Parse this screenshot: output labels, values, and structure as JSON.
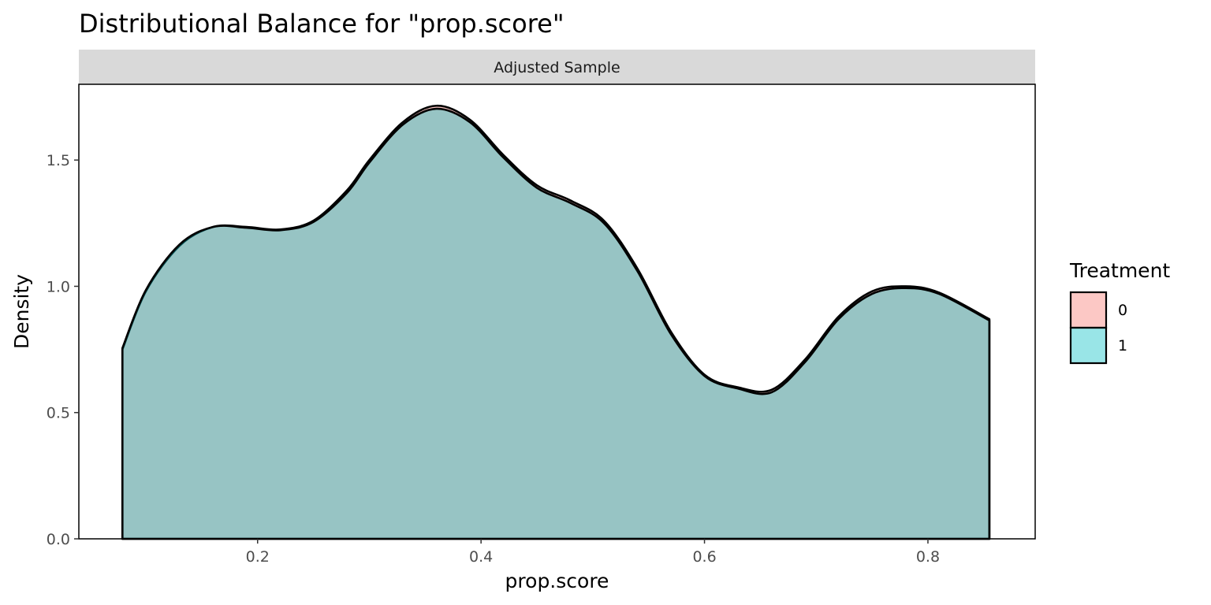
{
  "chart_data": {
    "type": "area",
    "title": "Distributional Balance for \"prop.score\"",
    "facet_label": "Adjusted Sample",
    "xlabel": "prop.score",
    "ylabel": "Density",
    "xlim": [
      0.04,
      0.896
    ],
    "ylim": [
      0,
      1.8
    ],
    "x_ticks": [
      0.2,
      0.4,
      0.6,
      0.8
    ],
    "x_tick_labels": [
      "0.2",
      "0.4",
      "0.6",
      "0.8"
    ],
    "y_ticks": [
      0.0,
      0.5,
      1.0,
      1.5
    ],
    "y_tick_labels": [
      "0.0",
      "0.5",
      "1.0",
      "1.5"
    ],
    "grid": false,
    "legend": {
      "title": "Treatment",
      "position": "right"
    },
    "series": [
      {
        "name": "0",
        "color": "#F8766D",
        "fill_opacity": 0.4,
        "x": [
          0.079,
          0.1,
          0.13,
          0.16,
          0.19,
          0.22,
          0.25,
          0.28,
          0.3,
          0.33,
          0.36,
          0.39,
          0.42,
          0.45,
          0.48,
          0.51,
          0.54,
          0.57,
          0.6,
          0.63,
          0.66,
          0.69,
          0.72,
          0.75,
          0.78,
          0.81,
          0.855
        ],
        "values": [
          0.75,
          0.98,
          1.16,
          1.235,
          1.235,
          1.225,
          1.26,
          1.38,
          1.5,
          1.65,
          1.715,
          1.66,
          1.52,
          1.4,
          1.34,
          1.26,
          1.07,
          0.82,
          0.65,
          0.6,
          0.59,
          0.71,
          0.88,
          0.98,
          1.0,
          0.975,
          0.87
        ]
      },
      {
        "name": "1",
        "color": "#00BFC4",
        "fill_opacity": 0.4,
        "x": [
          0.079,
          0.1,
          0.13,
          0.16,
          0.19,
          0.22,
          0.25,
          0.28,
          0.3,
          0.33,
          0.36,
          0.39,
          0.42,
          0.45,
          0.48,
          0.51,
          0.54,
          0.57,
          0.6,
          0.63,
          0.66,
          0.69,
          0.72,
          0.75,
          0.78,
          0.81,
          0.855
        ],
        "values": [
          0.755,
          0.985,
          1.165,
          1.235,
          1.232,
          1.222,
          1.255,
          1.37,
          1.49,
          1.64,
          1.703,
          1.65,
          1.51,
          1.39,
          1.33,
          1.25,
          1.06,
          0.81,
          0.645,
          0.595,
          0.58,
          0.7,
          0.87,
          0.97,
          0.993,
          0.97,
          0.865
        ]
      }
    ]
  }
}
